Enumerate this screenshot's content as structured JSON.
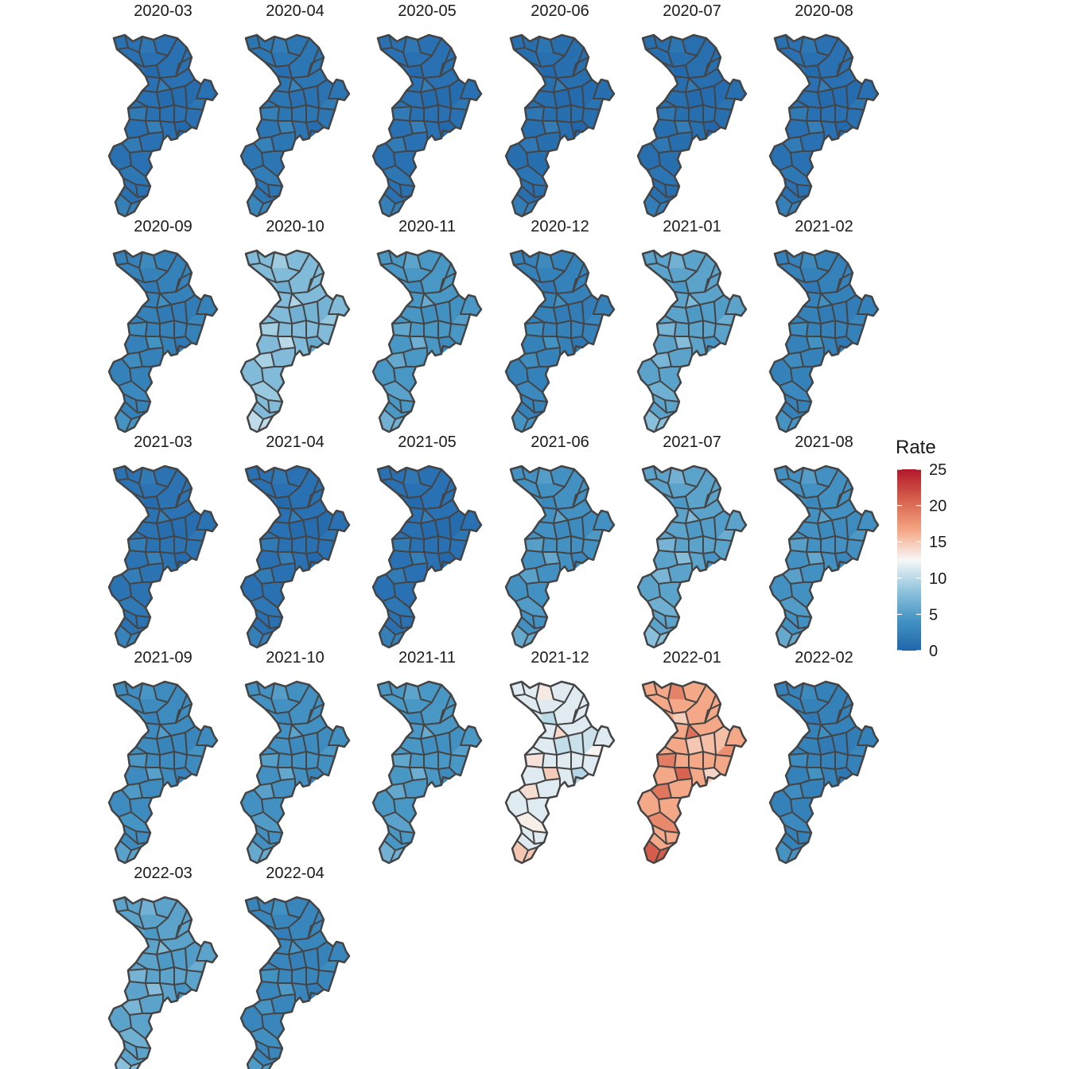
{
  "chart_data": {
    "type": "choropleth-facets",
    "legend": {
      "title": "Rate",
      "ticks": [
        "0",
        "5",
        "10",
        "15",
        "20",
        "25"
      ],
      "range": [
        0,
        25
      ],
      "colors": [
        "#2166ac",
        "#4393c3",
        "#92c5de",
        "#f7f7f7",
        "#f4a582",
        "#d6604d",
        "#b2182b"
      ]
    },
    "panels": [
      {
        "label": "2020-03",
        "level": 1.0
      },
      {
        "label": "2020-04",
        "level": 1.5
      },
      {
        "label": "2020-05",
        "level": 1.0
      },
      {
        "label": "2020-06",
        "level": 0.8
      },
      {
        "label": "2020-07",
        "level": 0.8
      },
      {
        "label": "2020-08",
        "level": 1.0
      },
      {
        "label": "2020-09",
        "level": 2.5
      },
      {
        "label": "2020-10",
        "level": 7.5
      },
      {
        "label": "2020-11",
        "level": 4.5
      },
      {
        "label": "2020-12",
        "level": 2.5
      },
      {
        "label": "2021-01",
        "level": 5.5
      },
      {
        "label": "2021-02",
        "level": 2.5
      },
      {
        "label": "2021-03",
        "level": 1.2
      },
      {
        "label": "2021-04",
        "level": 1.0
      },
      {
        "label": "2021-05",
        "level": 1.0
      },
      {
        "label": "2021-06",
        "level": 4.0
      },
      {
        "label": "2021-07",
        "level": 5.5
      },
      {
        "label": "2021-08",
        "level": 4.0
      },
      {
        "label": "2021-09",
        "level": 3.5
      },
      {
        "label": "2021-10",
        "level": 4.0
      },
      {
        "label": "2021-11",
        "level": 4.5
      },
      {
        "label": "2021-12",
        "level": 11.5
      },
      {
        "label": "2022-01",
        "level": 16.5
      },
      {
        "label": "2022-02",
        "level": 2.5
      },
      {
        "label": "2022-03",
        "level": 5.5
      },
      {
        "label": "2022-04",
        "level": 3.0
      }
    ]
  }
}
